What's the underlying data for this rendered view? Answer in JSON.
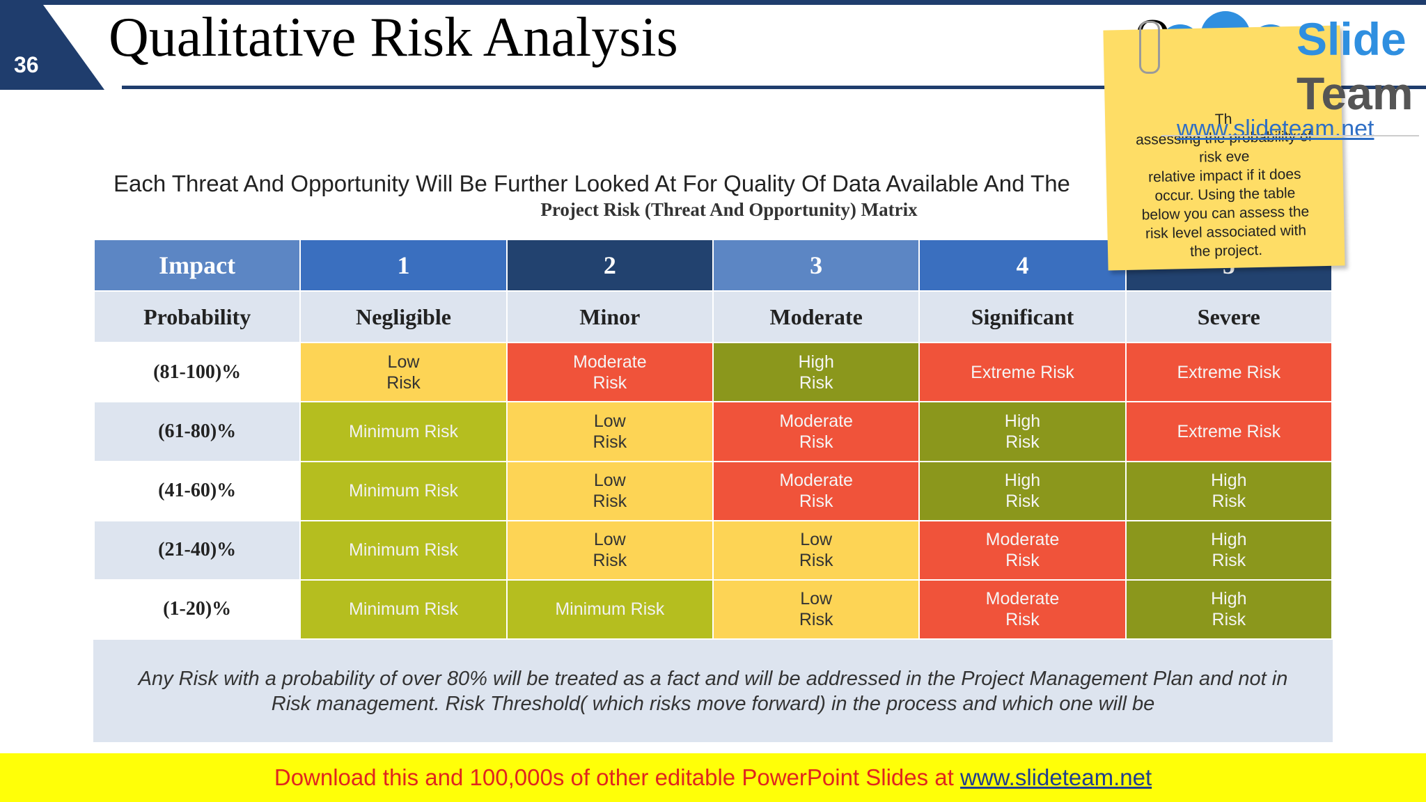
{
  "slide": {
    "number": "36",
    "title": "Qualitative Risk Analysis",
    "title_trailing": "Q",
    "subtitle": "Each Threat And Opportunity Will Be Further Looked At For Quality Of Data Available And The",
    "subtitle_trailing": "l",
    "matrix_title": "Project Risk (Threat And Opportunity) Matrix"
  },
  "matrix": {
    "impact_label": "Impact",
    "probability_label": "Probability",
    "impact_levels": [
      {
        "num": "1",
        "name": "Negligible",
        "color": "#3a6fbf"
      },
      {
        "num": "2",
        "name": "Minor",
        "color": "#22426f"
      },
      {
        "num": "3",
        "name": "Moderate",
        "color": "#5c86c4"
      },
      {
        "num": "4",
        "name": "Significant",
        "color": "#3a6fbf"
      },
      {
        "num": "5",
        "name": "Severe",
        "color": "#22426f"
      }
    ],
    "impact_header_color": "#5c86c4",
    "rows": [
      {
        "probability": "(81-100)%",
        "cells": [
          {
            "text": "Low\n Risk",
            "level": "low"
          },
          {
            "text": "Moderate\nRisk",
            "level": "moderate"
          },
          {
            "text": "High\nRisk",
            "level": "high"
          },
          {
            "text": "Extreme Risk",
            "level": "extreme"
          },
          {
            "text": "Extreme Risk",
            "level": "extreme"
          }
        ]
      },
      {
        "probability": "(61-80)%",
        "cells": [
          {
            "text": "Minimum Risk",
            "level": "minimum"
          },
          {
            "text": "Low\n Risk",
            "level": "low"
          },
          {
            "text": "Moderate\nRisk",
            "level": "moderate"
          },
          {
            "text": "High\nRisk",
            "level": "high"
          },
          {
            "text": "Extreme Risk",
            "level": "extreme"
          }
        ]
      },
      {
        "probability": "(41-60)%",
        "cells": [
          {
            "text": "Minimum Risk",
            "level": "minimum"
          },
          {
            "text": "Low\n Risk",
            "level": "low"
          },
          {
            "text": "Moderate\nRisk",
            "level": "moderate"
          },
          {
            "text": "High\nRisk",
            "level": "high"
          },
          {
            "text": "High\nRisk",
            "level": "high"
          }
        ]
      },
      {
        "probability": "(21-40)%",
        "cells": [
          {
            "text": "Minimum Risk",
            "level": "minimum"
          },
          {
            "text": "Low\n Risk",
            "level": "low"
          },
          {
            "text": "Low\n Risk",
            "level": "low"
          },
          {
            "text": "Moderate\nRisk",
            "level": "moderate"
          },
          {
            "text": "High\nRisk",
            "level": "high"
          }
        ]
      },
      {
        "probability": "(1-20)%",
        "cells": [
          {
            "text": "Minimum Risk",
            "level": "minimum"
          },
          {
            "text": "Minimum Risk",
            "level": "minimum"
          },
          {
            "text": "Low\n Risk",
            "level": "low"
          },
          {
            "text": "Moderate\nRisk",
            "level": "moderate"
          },
          {
            "text": "High\nRisk",
            "level": "high"
          }
        ]
      }
    ],
    "row_label_colors": [
      "#ffffff",
      "#dde4ef"
    ]
  },
  "footer_note": "Any Risk with a probability of over 80% will be treated as a fact and will be addressed in the Project Management Plan and not in Risk management. Risk Threshold( which risks move forward) in the process and which one will be",
  "sticky_note": {
    "lines": [
      "Th",
      "assessing the probability of",
      "risk eve",
      "relative impact if it does",
      "occur. Using the table",
      "below you can assess the",
      "risk level associated with",
      "the project."
    ]
  },
  "logo": {
    "word1": "Slide",
    "word2": "Team",
    "url": "www.slideteam.net",
    "colors": {
      "blue": "#2f8fe0",
      "gray": "#555555"
    }
  },
  "banner": {
    "text": "Download this and 100,000s of other editable PowerPoint Slides at ",
    "link": "www.slideteam.net",
    "background": "#ffff08",
    "text_color": "#e0261e"
  }
}
